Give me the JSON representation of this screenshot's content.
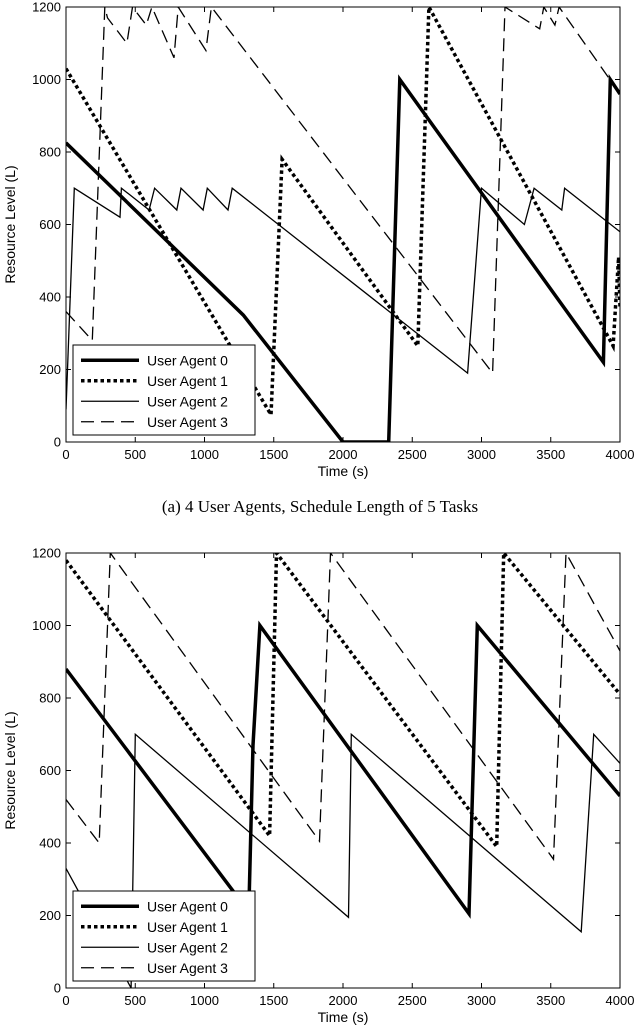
{
  "chart_data": [
    {
      "type": "line",
      "xlabel": "Time (s)",
      "ylabel": "Resource Level (L)",
      "xlim": [
        0,
        4000
      ],
      "ylim": [
        0,
        1200
      ],
      "xticks": [
        0,
        500,
        1000,
        1500,
        2000,
        2500,
        3000,
        3500,
        4000
      ],
      "yticks": [
        0,
        200,
        400,
        600,
        800,
        1000,
        1200
      ],
      "grid": false,
      "legend_position": "bottom-left",
      "caption": "(a) 4 User Agents, Schedule Length of 5 Tasks",
      "series": [
        {
          "name": "User Agent 0",
          "style": "thick-solid",
          "x": [
            0,
            1280,
            2000,
            2330,
            2410,
            3880,
            3930,
            4000
          ],
          "y": [
            825,
            350,
            0,
            0,
            1000,
            220,
            1000,
            960
          ]
        },
        {
          "name": "User Agent 1",
          "style": "dotted",
          "x": [
            0,
            1480,
            1560,
            2540,
            2620,
            3950,
            3990,
            4000
          ],
          "y": [
            1030,
            75,
            780,
            265,
            1200,
            265,
            510,
            370
          ]
        },
        {
          "name": "User Agent 2",
          "style": "thin-solid",
          "x": [
            0,
            60,
            390,
            400,
            600,
            640,
            800,
            830,
            990,
            1020,
            1170,
            1200,
            2900,
            3000,
            3310,
            3380,
            3580,
            3600,
            4000
          ],
          "y": [
            90,
            700,
            620,
            700,
            640,
            700,
            640,
            700,
            640,
            700,
            640,
            700,
            190,
            700,
            600,
            700,
            640,
            700,
            580
          ]
        },
        {
          "name": "User Agent 3",
          "style": "dashed",
          "x": [
            0,
            190,
            280,
            300,
            440,
            480,
            580,
            620,
            780,
            810,
            1010,
            1050,
            3080,
            3170,
            3420,
            3450,
            3530,
            3560,
            4000
          ],
          "y": [
            360,
            280,
            1200,
            1170,
            1100,
            1200,
            1150,
            1200,
            1060,
            1200,
            1080,
            1200,
            190,
            1200,
            1140,
            1200,
            1150,
            1200,
            960
          ]
        }
      ]
    },
    {
      "type": "line",
      "xlabel": "Time (s)",
      "ylabel": "Resource Level (L)",
      "xlim": [
        0,
        4000
      ],
      "ylim": [
        0,
        1200
      ],
      "xticks": [
        0,
        500,
        1000,
        1500,
        2000,
        2500,
        3000,
        3500,
        4000
      ],
      "yticks": [
        0,
        200,
        400,
        600,
        800,
        1000,
        1200
      ],
      "grid": false,
      "legend_position": "bottom-left",
      "series": [
        {
          "name": "User Agent 0",
          "style": "thick-solid",
          "x": [
            0,
            1320,
            1350,
            1400,
            2910,
            2970,
            4000
          ],
          "y": [
            880,
            210,
            670,
            1000,
            205,
            1000,
            530
          ]
        },
        {
          "name": "User Agent 1",
          "style": "dotted",
          "x": [
            0,
            1470,
            1520,
            3110,
            3160,
            4000
          ],
          "y": [
            1180,
            420,
            1200,
            390,
            1200,
            810
          ]
        },
        {
          "name": "User Agent 2",
          "style": "thin-solid",
          "x": [
            0,
            470,
            500,
            2040,
            2060,
            3720,
            3810,
            4000
          ],
          "y": [
            330,
            0,
            700,
            195,
            700,
            155,
            700,
            620
          ]
        },
        {
          "name": "User Agent 3",
          "style": "dashed",
          "x": [
            0,
            240,
            320,
            1830,
            1910,
            3520,
            3610,
            4000
          ],
          "y": [
            520,
            400,
            1200,
            405,
            1200,
            355,
            1200,
            930
          ]
        }
      ]
    }
  ]
}
